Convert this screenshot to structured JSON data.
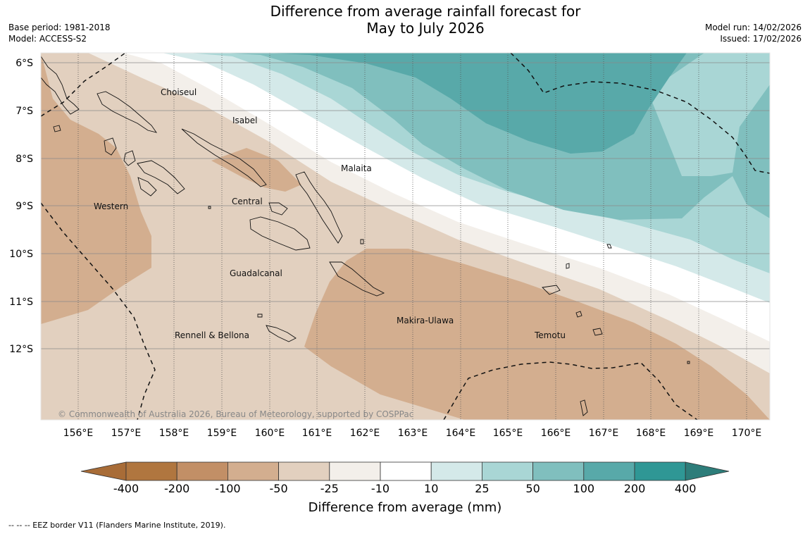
{
  "title_line1": "Difference from average rainfall forecast for",
  "title_line2": "May to July 2026",
  "meta_left": {
    "base_period": "Base period: 1981-2018",
    "model": "Model: ACCESS-S2"
  },
  "meta_right": {
    "model_run": "Model run: 14/02/2026",
    "issued": "Issued: 17/02/2026"
  },
  "copyright": "© Commonwealth of Australia 2026, Bureau of Meteorology, supported by COSPPac",
  "lon_labels": [
    "156°E",
    "157°E",
    "158°E",
    "159°E",
    "160°E",
    "161°E",
    "162°E",
    "163°E",
    "164°E",
    "165°E",
    "166°E",
    "167°E",
    "168°E",
    "169°E",
    "170°E"
  ],
  "lat_labels": [
    "6°S",
    "7°S",
    "8°S",
    "9°S",
    "10°S",
    "11°S",
    "12°S"
  ],
  "regions": [
    {
      "name": "Choiseul"
    },
    {
      "name": "Isabel"
    },
    {
      "name": "Malaita"
    },
    {
      "name": "Western"
    },
    {
      "name": "Central"
    },
    {
      "name": "Guadalcanal"
    },
    {
      "name": "Makira-Ulawa"
    },
    {
      "name": "Rennell & Bellona"
    },
    {
      "name": "Temotu"
    }
  ],
  "colorbar": {
    "title": "Difference from average (mm)",
    "ticks": [
      "-400",
      "-200",
      "-100",
      "-50",
      "-25",
      "-10",
      "10",
      "25",
      "50",
      "100",
      "200",
      "400"
    ],
    "colors": [
      "#a86c37",
      "#b0763f",
      "#c28f66",
      "#d3ae8f",
      "#e2d0bf",
      "#f3efea",
      "#ffffff",
      "#d4e9e9",
      "#a9d6d5",
      "#80bfbe",
      "#58a9a9",
      "#2f9795",
      "#2d7d7a"
    ]
  },
  "footnote": "--  --  -- EEZ border V11 (Flanders Marine Institute, 2019)."
}
